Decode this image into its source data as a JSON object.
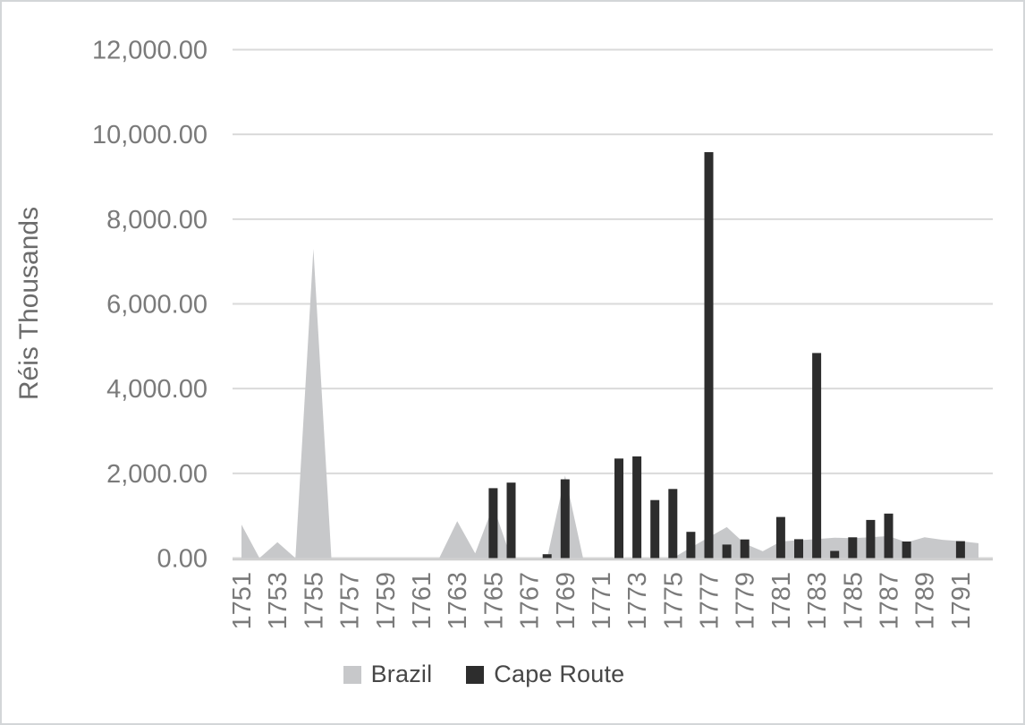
{
  "chart_data": {
    "type": "combo-area-bar",
    "ylabel": "Réis Thousands",
    "ylim": [
      0,
      12000
    ],
    "grid": true,
    "legend_position": "bottom",
    "y_tick_labels": [
      "0.00",
      "2,000.00",
      "4,000.00",
      "6,000.00",
      "8,000.00",
      "10,000.00",
      "12,000.00"
    ],
    "x_tick_labels": [
      "1751",
      "1753",
      "1755",
      "1757",
      "1759",
      "1761",
      "1763",
      "1765",
      "1767",
      "1769",
      "1771",
      "1773",
      "1775",
      "1777",
      "1779",
      "1781",
      "1783",
      "1785",
      "1787",
      "1789",
      "1791"
    ],
    "categories": [
      1751,
      1752,
      1753,
      1754,
      1755,
      1756,
      1757,
      1758,
      1759,
      1760,
      1761,
      1762,
      1763,
      1764,
      1765,
      1766,
      1767,
      1768,
      1769,
      1770,
      1771,
      1772,
      1773,
      1774,
      1775,
      1776,
      1777,
      1778,
      1779,
      1780,
      1781,
      1782,
      1783,
      1784,
      1785,
      1786,
      1787,
      1788,
      1789,
      1790,
      1791,
      1792
    ],
    "series": [
      {
        "name": "Brazil",
        "type": "area",
        "color": "#c7c8ca",
        "values": [
          790,
          0,
          375,
          0,
          7300,
          0,
          0,
          0,
          0,
          0,
          0,
          0,
          870,
          110,
          1230,
          0,
          0,
          0,
          1950,
          0,
          0,
          0,
          0,
          0,
          0,
          250,
          490,
          730,
          340,
          160,
          390,
          420,
          450,
          480,
          470,
          490,
          520,
          370,
          490,
          430,
          400,
          350
        ]
      },
      {
        "name": "Cape Route",
        "type": "bar",
        "color": "#2d2d2d",
        "values": [
          0,
          0,
          0,
          0,
          0,
          0,
          0,
          0,
          0,
          0,
          0,
          0,
          0,
          0,
          1650,
          1780,
          0,
          90,
          1860,
          0,
          0,
          2350,
          2400,
          1370,
          1630,
          620,
          9580,
          320,
          440,
          0,
          970,
          445,
          4840,
          170,
          490,
          900,
          1050,
          390,
          0,
          0,
          400,
          0
        ]
      }
    ],
    "colors": {
      "gridline": "#dadada",
      "axis_line": "#cfcfcf",
      "tick_label": "#7a7a7a",
      "axis_title": "#6b6b6b",
      "legend_text": "#474747",
      "border": "#d3d6d8"
    }
  }
}
